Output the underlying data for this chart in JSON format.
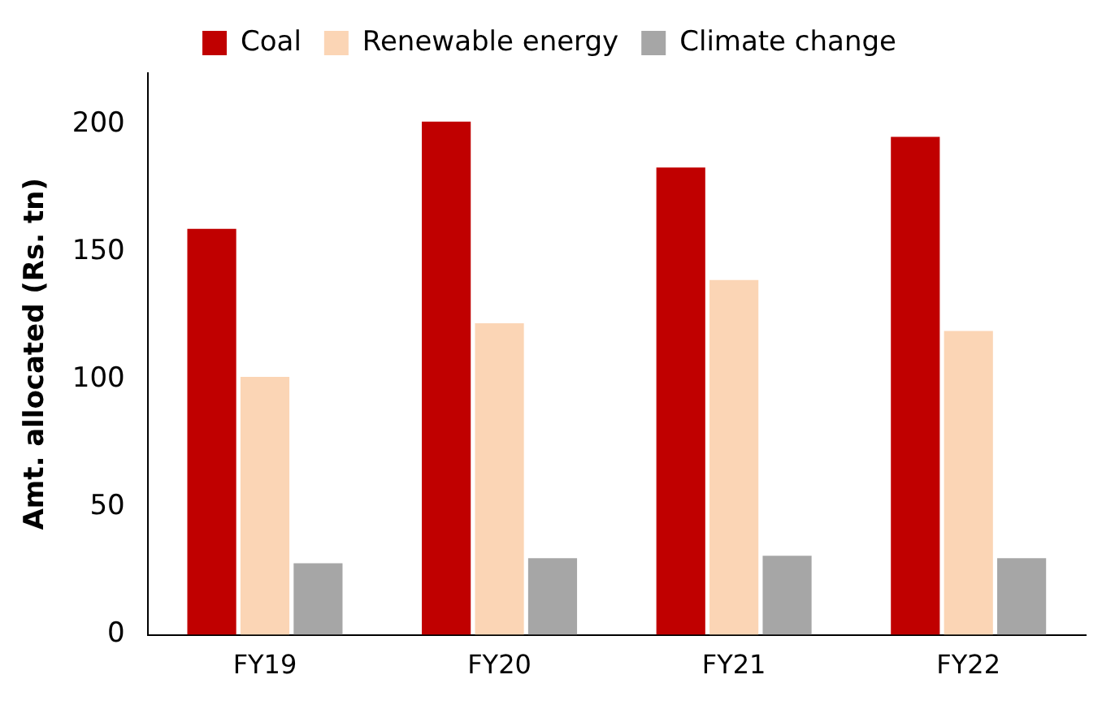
{
  "chart_data": {
    "type": "bar",
    "ylabel": "Amt. allocated (Rs. tn)",
    "categories": [
      "FY19",
      "FY20",
      "FY21",
      "FY22"
    ],
    "series": [
      {
        "name": "Coal",
        "color": "#c00000",
        "values": [
          159,
          201,
          183,
          195
        ]
      },
      {
        "name": "Renewable energy",
        "color": "#fbd5b5",
        "values": [
          101,
          122,
          139,
          119
        ]
      },
      {
        "name": "Climate change",
        "color": "#a6a6a6",
        "values": [
          28,
          30,
          31,
          30
        ]
      }
    ],
    "ylim": [
      0,
      220
    ],
    "yticks": [
      0,
      50,
      100,
      150,
      200
    ],
    "grid": false,
    "legend": "top"
  }
}
